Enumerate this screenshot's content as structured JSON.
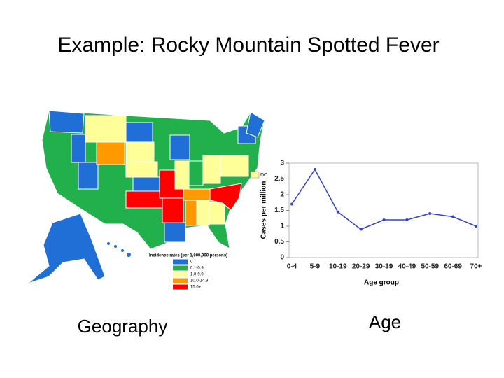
{
  "title": "Example:  Rocky Mountain Spotted Fever",
  "map": {
    "dc_label": "DC",
    "legend_title": "Incidence rates (per 1,000,000 persons)",
    "legend": [
      {
        "label": "0",
        "color": "#1f6fd6"
      },
      {
        "label": "0.1-0.9",
        "color": "#22b04c"
      },
      {
        "label": "1.0-9.9",
        "color": "#ffff99"
      },
      {
        "label": "10.0-14.9",
        "color": "#ff9900"
      },
      {
        "label": "15.0+",
        "color": "#ff0000"
      }
    ],
    "caption": "Geography"
  },
  "chart_data": {
    "type": "line",
    "categories": [
      "0-4",
      "5-9",
      "10-19",
      "20-29",
      "30-39",
      "40-49",
      "50-59",
      "60-69",
      "70+"
    ],
    "series": [
      {
        "name": "Cases per million",
        "color": "#3340d0",
        "values": [
          1.7,
          2.8,
          1.45,
          0.9,
          1.2,
          1.2,
          1.4,
          1.3,
          1.0
        ]
      }
    ],
    "ylim": [
      0,
      3
    ],
    "yticks": [
      0,
      0.5,
      1,
      1.5,
      2,
      2.5,
      3
    ],
    "x_label": "Age group",
    "y_label": "Cases per million",
    "caption": "Age"
  }
}
